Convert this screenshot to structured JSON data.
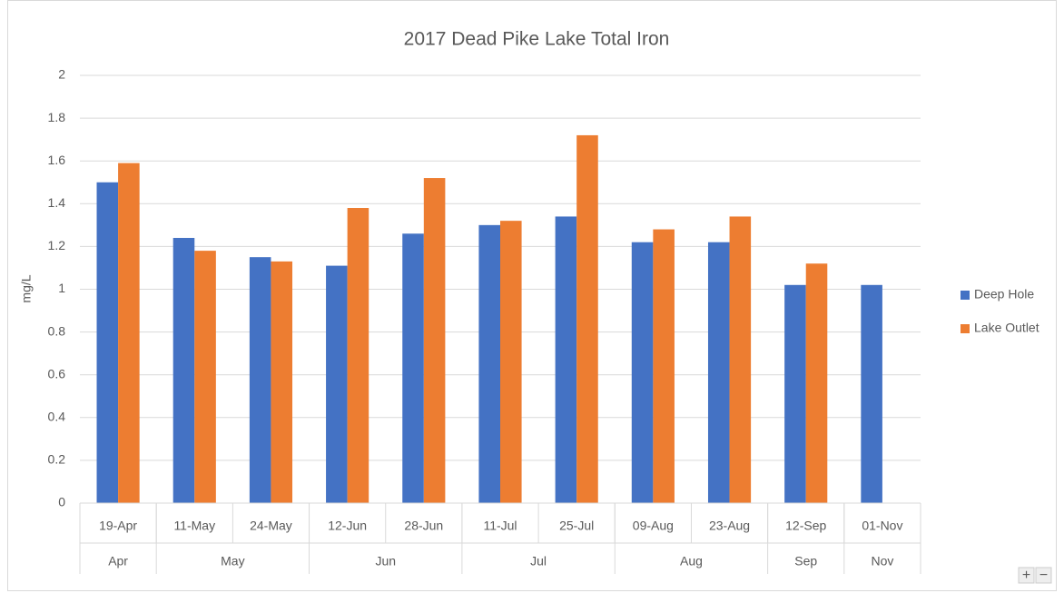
{
  "chart_data": {
    "type": "bar",
    "title": "2017 Dead Pike Lake Total Iron",
    "y_label": "mg/L",
    "categories": [
      "19-Apr",
      "11-May",
      "24-May",
      "12-Jun",
      "28-Jun",
      "11-Jul",
      "25-Jul",
      "09-Aug",
      "23-Aug",
      "12-Sep",
      "01-Nov"
    ],
    "groups": [
      {
        "label": "Apr",
        "count": 1
      },
      {
        "label": "May",
        "count": 2
      },
      {
        "label": "Jun",
        "count": 2
      },
      {
        "label": "Jul",
        "count": 2
      },
      {
        "label": "Aug",
        "count": 2
      },
      {
        "label": "Sep",
        "count": 1
      },
      {
        "label": "Nov",
        "count": 1
      }
    ],
    "series": [
      {
        "name": "Deep Hole",
        "color": "#4472c4",
        "values": [
          1.5,
          1.24,
          1.15,
          1.11,
          1.26,
          1.3,
          1.34,
          1.22,
          1.22,
          1.02,
          1.02
        ]
      },
      {
        "name": "Lake Outlet",
        "color": "#ed7d31",
        "values": [
          1.59,
          1.18,
          1.13,
          1.38,
          1.52,
          1.32,
          1.72,
          1.28,
          1.34,
          1.12,
          null
        ]
      }
    ],
    "ylim": [
      0,
      2
    ],
    "yticks": [
      0,
      0.2,
      0.4,
      0.6,
      0.8,
      1,
      1.2,
      1.4,
      1.6,
      1.8,
      2
    ],
    "grid": true,
    "legend": "right"
  },
  "zoom_controls": [
    "+",
    "−"
  ]
}
